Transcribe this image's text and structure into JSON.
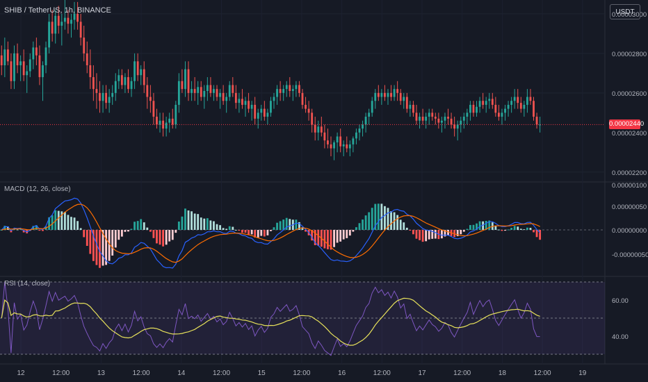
{
  "header": {
    "symbol_line": "SHIB / TetherUS, 1h, BINANCE",
    "currency_button": "USDT"
  },
  "price_panel": {
    "last_price": "0.00002440",
    "axis_labels": [
      "0.00003000",
      "0.00002800",
      "0.00002600",
      "0.00002400",
      "0.00002200"
    ],
    "colors": {
      "up": "#26a69a",
      "down": "#ef5350",
      "price_line": "#f23645"
    }
  },
  "macd_panel": {
    "title": "MACD (12, 26, close)",
    "axis_labels": [
      "0.00000100",
      "0.00000050",
      "0.00000000",
      "-0.00000050"
    ],
    "colors": {
      "macd": "#2962ff",
      "signal": "#ff6d00",
      "hist_up": "#26a69a",
      "hist_up_light": "#b2dfdb",
      "hist_down": "#ff5252",
      "hist_down_light": "#ffcdd2"
    }
  },
  "rsi_panel": {
    "title": "RSI (14, close)",
    "axis_labels": [
      "60.00",
      "40.00"
    ],
    "colors": {
      "rsi": "#7e57c2",
      "ma": "#e8e25b",
      "band": "#7e57c2"
    }
  },
  "time_axis": {
    "labels": [
      "12",
      "12:00",
      "13",
      "12:00",
      "14",
      "12:00",
      "15",
      "12:00",
      "16",
      "12:00",
      "17",
      "12:00",
      "18",
      "12:00",
      "19"
    ]
  },
  "chart_data": {
    "type": "candlestick",
    "series": [
      {
        "name": "price",
        "values": [
          [
            2.79,
            2.84,
            2.69,
            2.74
          ],
          [
            2.74,
            2.88,
            2.68,
            2.82
          ],
          [
            2.82,
            2.86,
            2.74,
            2.76
          ],
          [
            2.76,
            2.8,
            2.62,
            2.66
          ],
          [
            2.66,
            2.84,
            2.62,
            2.8
          ],
          [
            2.8,
            2.85,
            2.7,
            2.74
          ],
          [
            2.74,
            2.79,
            2.66,
            2.76
          ],
          [
            2.76,
            2.82,
            2.66,
            2.69
          ],
          [
            2.69,
            2.74,
            2.6,
            2.71
          ],
          [
            2.71,
            2.8,
            2.68,
            2.77
          ],
          [
            2.77,
            2.86,
            2.72,
            2.83
          ],
          [
            2.83,
            2.88,
            2.74,
            2.79
          ],
          [
            2.79,
            2.84,
            2.64,
            2.68
          ],
          [
            2.68,
            2.76,
            2.56,
            2.74
          ],
          [
            2.74,
            2.86,
            2.7,
            2.83
          ],
          [
            2.83,
            3.0,
            2.8,
            2.96
          ],
          [
            2.96,
            3.02,
            2.86,
            2.9
          ],
          [
            2.9,
            3.02,
            2.85,
            2.99
          ],
          [
            2.99,
            3.04,
            2.9,
            2.94
          ],
          [
            2.94,
            3.0,
            2.84,
            2.96
          ],
          [
            2.96,
            3.08,
            2.92,
            2.98
          ],
          [
            2.98,
            3.02,
            2.9,
            2.95
          ],
          [
            2.95,
            3.0,
            2.88,
            2.97
          ],
          [
            2.97,
            3.06,
            2.92,
            3.0
          ],
          [
            3.0,
            3.06,
            2.92,
            2.96
          ],
          [
            2.96,
            3.0,
            2.84,
            2.88
          ],
          [
            2.88,
            2.94,
            2.76,
            2.8
          ],
          [
            2.8,
            2.86,
            2.7,
            2.74
          ],
          [
            2.74,
            2.82,
            2.62,
            2.68
          ],
          [
            2.68,
            2.74,
            2.56,
            2.62
          ],
          [
            2.62,
            2.7,
            2.52,
            2.6
          ],
          [
            2.6,
            2.66,
            2.5,
            2.56
          ],
          [
            2.56,
            2.64,
            2.5,
            2.6
          ],
          [
            2.6,
            2.64,
            2.52,
            2.55
          ],
          [
            2.55,
            2.62,
            2.5,
            2.58
          ],
          [
            2.58,
            2.64,
            2.54,
            2.6
          ],
          [
            2.6,
            2.7,
            2.56,
            2.66
          ],
          [
            2.66,
            2.72,
            2.62,
            2.69
          ],
          [
            2.69,
            2.72,
            2.62,
            2.64
          ],
          [
            2.64,
            2.7,
            2.6,
            2.68
          ],
          [
            2.68,
            2.72,
            2.6,
            2.62
          ],
          [
            2.62,
            2.68,
            2.58,
            2.66
          ],
          [
            2.66,
            2.8,
            2.62,
            2.76
          ],
          [
            2.76,
            2.8,
            2.66,
            2.69
          ],
          [
            2.69,
            2.74,
            2.64,
            2.72
          ],
          [
            2.72,
            2.76,
            2.6,
            2.64
          ],
          [
            2.64,
            2.68,
            2.52,
            2.58
          ],
          [
            2.58,
            2.64,
            2.5,
            2.56
          ],
          [
            2.56,
            2.6,
            2.44,
            2.48
          ],
          [
            2.48,
            2.52,
            2.42,
            2.44
          ],
          [
            2.44,
            2.5,
            2.4,
            2.46
          ],
          [
            2.46,
            2.5,
            2.38,
            2.42
          ],
          [
            2.42,
            2.48,
            2.38,
            2.45
          ],
          [
            2.45,
            2.5,
            2.4,
            2.47
          ],
          [
            2.47,
            2.52,
            2.42,
            2.44
          ],
          [
            2.44,
            2.56,
            2.42,
            2.54
          ],
          [
            2.54,
            2.7,
            2.5,
            2.66
          ],
          [
            2.66,
            2.72,
            2.6,
            2.62
          ],
          [
            2.62,
            2.76,
            2.58,
            2.72
          ],
          [
            2.72,
            2.76,
            2.56,
            2.6
          ],
          [
            2.6,
            2.66,
            2.56,
            2.62
          ],
          [
            2.62,
            2.68,
            2.56,
            2.6
          ],
          [
            2.6,
            2.66,
            2.54,
            2.63
          ],
          [
            2.63,
            2.66,
            2.56,
            2.58
          ],
          [
            2.58,
            2.64,
            2.52,
            2.61
          ],
          [
            2.61,
            2.68,
            2.56,
            2.64
          ],
          [
            2.64,
            2.68,
            2.58,
            2.6
          ],
          [
            2.6,
            2.64,
            2.56,
            2.62
          ],
          [
            2.62,
            2.64,
            2.56,
            2.58
          ],
          [
            2.58,
            2.62,
            2.52,
            2.6
          ],
          [
            2.6,
            2.64,
            2.54,
            2.56
          ],
          [
            2.56,
            2.6,
            2.5,
            2.58
          ],
          [
            2.58,
            2.66,
            2.56,
            2.64
          ],
          [
            2.64,
            2.68,
            2.58,
            2.6
          ],
          [
            2.6,
            2.64,
            2.52,
            2.55
          ],
          [
            2.55,
            2.6,
            2.5,
            2.57
          ],
          [
            2.57,
            2.62,
            2.52,
            2.54
          ],
          [
            2.54,
            2.58,
            2.48,
            2.56
          ],
          [
            2.56,
            2.6,
            2.5,
            2.52
          ],
          [
            2.52,
            2.56,
            2.46,
            2.54
          ],
          [
            2.54,
            2.58,
            2.44,
            2.47
          ],
          [
            2.47,
            2.52,
            2.42,
            2.5
          ],
          [
            2.5,
            2.54,
            2.46,
            2.52
          ],
          [
            2.52,
            2.56,
            2.46,
            2.48
          ],
          [
            2.48,
            2.52,
            2.44,
            2.5
          ],
          [
            2.5,
            2.58,
            2.48,
            2.56
          ],
          [
            2.56,
            2.6,
            2.52,
            2.58
          ],
          [
            2.58,
            2.64,
            2.54,
            2.62
          ],
          [
            2.62,
            2.66,
            2.56,
            2.6
          ],
          [
            2.6,
            2.64,
            2.56,
            2.62
          ],
          [
            2.62,
            2.66,
            2.58,
            2.64
          ],
          [
            2.64,
            2.68,
            2.58,
            2.61
          ],
          [
            2.61,
            2.64,
            2.56,
            2.62
          ],
          [
            2.62,
            2.66,
            2.58,
            2.64
          ],
          [
            2.64,
            2.66,
            2.58,
            2.6
          ],
          [
            2.6,
            2.62,
            2.52,
            2.54
          ],
          [
            2.54,
            2.58,
            2.5,
            2.52
          ],
          [
            2.52,
            2.56,
            2.46,
            2.5
          ],
          [
            2.5,
            2.52,
            2.4,
            2.44
          ],
          [
            2.44,
            2.48,
            2.36,
            2.4
          ],
          [
            2.4,
            2.46,
            2.36,
            2.43
          ],
          [
            2.43,
            2.48,
            2.38,
            2.4
          ],
          [
            2.4,
            2.44,
            2.32,
            2.36
          ],
          [
            2.36,
            2.42,
            2.32,
            2.34
          ],
          [
            2.34,
            2.38,
            2.28,
            2.32
          ],
          [
            2.32,
            2.36,
            2.26,
            2.35
          ],
          [
            2.35,
            2.4,
            2.3,
            2.38
          ],
          [
            2.38,
            2.42,
            2.3,
            2.33
          ],
          [
            2.33,
            2.36,
            2.28,
            2.34
          ],
          [
            2.34,
            2.38,
            2.3,
            2.32
          ],
          [
            2.32,
            2.36,
            2.28,
            2.34
          ],
          [
            2.34,
            2.38,
            2.3,
            2.37
          ],
          [
            2.37,
            2.42,
            2.34,
            2.4
          ],
          [
            2.4,
            2.44,
            2.36,
            2.42
          ],
          [
            2.42,
            2.46,
            2.38,
            2.44
          ],
          [
            2.44,
            2.5,
            2.4,
            2.48
          ],
          [
            2.48,
            2.52,
            2.44,
            2.5
          ],
          [
            2.5,
            2.58,
            2.48,
            2.56
          ],
          [
            2.56,
            2.62,
            2.52,
            2.6
          ],
          [
            2.6,
            2.64,
            2.56,
            2.58
          ],
          [
            2.58,
            2.62,
            2.54,
            2.6
          ],
          [
            2.6,
            2.64,
            2.56,
            2.58
          ],
          [
            2.58,
            2.62,
            2.54,
            2.6
          ],
          [
            2.6,
            2.64,
            2.56,
            2.58
          ],
          [
            2.58,
            2.64,
            2.56,
            2.62
          ],
          [
            2.62,
            2.66,
            2.56,
            2.6
          ],
          [
            2.6,
            2.62,
            2.54,
            2.56
          ],
          [
            2.56,
            2.6,
            2.52,
            2.58
          ],
          [
            2.58,
            2.6,
            2.5,
            2.52
          ],
          [
            2.52,
            2.56,
            2.48,
            2.54
          ],
          [
            2.54,
            2.56,
            2.48,
            2.5
          ],
          [
            2.5,
            2.54,
            2.44,
            2.46
          ],
          [
            2.46,
            2.5,
            2.42,
            2.48
          ],
          [
            2.48,
            2.52,
            2.44,
            2.46
          ],
          [
            2.46,
            2.5,
            2.42,
            2.48
          ],
          [
            2.48,
            2.52,
            2.44,
            2.5
          ],
          [
            2.5,
            2.52,
            2.46,
            2.48
          ],
          [
            2.48,
            2.5,
            2.44,
            2.47
          ],
          [
            2.47,
            2.5,
            2.42,
            2.45
          ],
          [
            2.45,
            2.48,
            2.4,
            2.46
          ],
          [
            2.46,
            2.5,
            2.42,
            2.48
          ],
          [
            2.48,
            2.52,
            2.44,
            2.47
          ],
          [
            2.47,
            2.5,
            2.42,
            2.44
          ],
          [
            2.44,
            2.48,
            2.38,
            2.42
          ],
          [
            2.42,
            2.46,
            2.36,
            2.44
          ],
          [
            2.44,
            2.48,
            2.4,
            2.46
          ],
          [
            2.46,
            2.5,
            2.42,
            2.48
          ],
          [
            2.48,
            2.52,
            2.44,
            2.5
          ],
          [
            2.5,
            2.56,
            2.46,
            2.54
          ],
          [
            2.54,
            2.56,
            2.48,
            2.5
          ],
          [
            2.5,
            2.56,
            2.48,
            2.53
          ],
          [
            2.53,
            2.58,
            2.5,
            2.56
          ],
          [
            2.56,
            2.6,
            2.52,
            2.54
          ],
          [
            2.54,
            2.58,
            2.5,
            2.56
          ],
          [
            2.56,
            2.6,
            2.52,
            2.57
          ],
          [
            2.57,
            2.6,
            2.52,
            2.54
          ],
          [
            2.54,
            2.58,
            2.48,
            2.5
          ],
          [
            2.5,
            2.54,
            2.46,
            2.48
          ],
          [
            2.48,
            2.52,
            2.44,
            2.5
          ],
          [
            2.5,
            2.54,
            2.46,
            2.52
          ],
          [
            2.52,
            2.56,
            2.48,
            2.54
          ],
          [
            2.54,
            2.58,
            2.5,
            2.56
          ],
          [
            2.56,
            2.62,
            2.52,
            2.58
          ],
          [
            2.58,
            2.62,
            2.52,
            2.55
          ],
          [
            2.55,
            2.58,
            2.5,
            2.52
          ],
          [
            2.52,
            2.56,
            2.48,
            2.54
          ],
          [
            2.54,
            2.62,
            2.5,
            2.58
          ],
          [
            2.58,
            2.62,
            2.54,
            2.56
          ],
          [
            2.56,
            2.58,
            2.46,
            2.48
          ],
          [
            2.48,
            2.5,
            2.42,
            2.44
          ],
          [
            2.44,
            2.48,
            2.4,
            2.44
          ]
        ]
      }
    ],
    "x_labels": [
      "12",
      "12:00",
      "13",
      "12:00",
      "14",
      "12:00",
      "15",
      "12:00",
      "16",
      "12:00",
      "17",
      "12:00",
      "18",
      "12:00",
      "19"
    ],
    "ylim": [
      2.15e-05,
      3.07e-05
    ],
    "unit_scale": 1e-05,
    "last_value": 2.44e-05,
    "grid": true
  }
}
